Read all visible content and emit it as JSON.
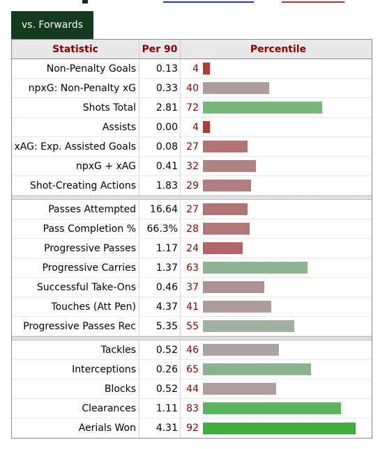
{
  "tab": {
    "label": "vs. Forwards"
  },
  "table": {
    "headers": {
      "statistic": "Statistic",
      "per90": "Per 90",
      "percentile": "Percentile"
    },
    "groups": [
      [
        {
          "stat": "Non-Penalty Goals",
          "per90": "0.13",
          "pct": 4,
          "color": "#b23a3a"
        },
        {
          "stat": "npxG: Non-Penalty xG",
          "per90": "0.33",
          "pct": 40,
          "color": "#ad9a9b"
        },
        {
          "stat": "Shots Total",
          "per90": "2.81",
          "pct": 72,
          "color": "#77b878"
        },
        {
          "stat": "Assists",
          "per90": "0.00",
          "pct": 4,
          "color": "#b23a3a"
        },
        {
          "stat": "xAG: Exp. Assisted Goals",
          "per90": "0.08",
          "pct": 27,
          "color": "#b07474"
        },
        {
          "stat": "npxG + xAG",
          "per90": "0.41",
          "pct": 32,
          "color": "#b08484"
        },
        {
          "stat": "Shot-Creating Actions",
          "per90": "1.83",
          "pct": 29,
          "color": "#b07e7e"
        }
      ],
      [
        {
          "stat": "Passes Attempted",
          "per90": "16.64",
          "pct": 27,
          "color": "#b07474"
        },
        {
          "stat": "Pass Completion %",
          "per90": "66.3%",
          "pct": 28,
          "color": "#b07878"
        },
        {
          "stat": "Progressive Passes",
          "per90": "1.17",
          "pct": 24,
          "color": "#b06666"
        },
        {
          "stat": "Progressive Carries",
          "per90": "1.37",
          "pct": 63,
          "color": "#8fb28f"
        },
        {
          "stat": "Successful Take-Ons",
          "per90": "0.46",
          "pct": 37,
          "color": "#ad9494"
        },
        {
          "stat": "Touches (Att Pen)",
          "per90": "4.37",
          "pct": 41,
          "color": "#ad9c9c"
        },
        {
          "stat": "Progressive Passes Rec",
          "per90": "5.35",
          "pct": 55,
          "color": "#a1afa1"
        }
      ],
      [
        {
          "stat": "Tackles",
          "per90": "0.52",
          "pct": 46,
          "color": "#aea2a2"
        },
        {
          "stat": "Interceptions",
          "per90": "0.26",
          "pct": 65,
          "color": "#8cb28c"
        },
        {
          "stat": "Blocks",
          "per90": "0.52",
          "pct": 44,
          "color": "#ad9f9f"
        },
        {
          "stat": "Clearances",
          "per90": "1.11",
          "pct": 83,
          "color": "#5db35d"
        },
        {
          "stat": "Aerials Won",
          "per90": "4.31",
          "pct": 92,
          "color": "#3fae3f"
        }
      ]
    ]
  }
}
